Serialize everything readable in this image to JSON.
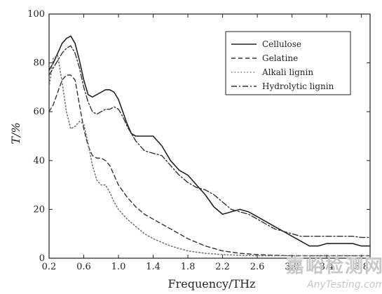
{
  "chart_data": {
    "type": "line",
    "xlabel": "Frequency/THz",
    "ylabel": "T/%",
    "xlim": [
      0.2,
      3.9
    ],
    "ylim": [
      0,
      100
    ],
    "xticks": [
      0.2,
      0.6,
      1.0,
      1.4,
      1.8,
      2.2,
      2.6,
      3.0,
      3.4,
      3.8
    ],
    "yticks": [
      0,
      20,
      40,
      60,
      80,
      100
    ],
    "xtick_labels": [
      "0.2",
      "0.6",
      "1.0",
      "1.4",
      "1.8",
      "2.2",
      "2.6",
      "3.0",
      "3.4",
      "3.8"
    ],
    "ytick_labels": [
      "0",
      "20",
      "40",
      "60",
      "80",
      "100"
    ],
    "grid": false,
    "legend_position": "top-right",
    "series": [
      {
        "name": "Cellulose",
        "style": "solid",
        "x": [
          0.2,
          0.25,
          0.3,
          0.35,
          0.4,
          0.45,
          0.5,
          0.55,
          0.6,
          0.65,
          0.7,
          0.75,
          0.8,
          0.85,
          0.9,
          0.95,
          1.0,
          1.05,
          1.1,
          1.15,
          1.2,
          1.3,
          1.4,
          1.5,
          1.6,
          1.7,
          1.8,
          1.9,
          2.0,
          2.1,
          2.2,
          2.3,
          2.4,
          2.5,
          2.6,
          2.7,
          2.8,
          2.9,
          3.0,
          3.1,
          3.2,
          3.3,
          3.4,
          3.5,
          3.6,
          3.7,
          3.8,
          3.9
        ],
        "y": [
          77,
          80,
          84,
          88,
          90,
          91,
          88,
          81,
          73,
          67,
          66,
          67,
          68,
          69,
          69,
          68,
          65,
          60,
          55,
          51,
          50,
          50,
          50,
          46,
          40,
          36,
          34,
          30,
          26,
          21,
          18,
          19,
          20,
          19,
          17,
          15,
          13,
          11,
          9,
          7,
          5,
          5,
          6,
          6,
          6,
          6,
          5,
          5
        ]
      },
      {
        "name": "Gelatine",
        "style": "dashed",
        "x": [
          0.2,
          0.25,
          0.3,
          0.35,
          0.4,
          0.45,
          0.5,
          0.55,
          0.6,
          0.65,
          0.7,
          0.75,
          0.8,
          0.85,
          0.9,
          0.95,
          1.0,
          1.1,
          1.2,
          1.3,
          1.4,
          1.5,
          1.6,
          1.8,
          2.0,
          2.2,
          2.4,
          2.6,
          2.8,
          3.0,
          3.2,
          3.4,
          3.6,
          3.8,
          3.9
        ],
        "y": [
          60,
          63,
          68,
          73,
          75,
          75,
          73,
          63,
          53,
          46,
          42,
          41,
          41,
          40,
          38,
          34,
          30,
          25,
          21,
          18,
          16,
          14,
          12,
          8,
          5,
          3,
          2,
          1.5,
          1.2,
          1,
          1,
          1,
          1,
          1,
          1
        ]
      },
      {
        "name": "Alkali lignin",
        "style": "dotted",
        "x": [
          0.2,
          0.25,
          0.3,
          0.35,
          0.4,
          0.45,
          0.5,
          0.55,
          0.6,
          0.65,
          0.7,
          0.75,
          0.8,
          0.85,
          0.9,
          0.95,
          1.0,
          1.1,
          1.2,
          1.3,
          1.4,
          1.6,
          1.8,
          2.0,
          2.2,
          2.4,
          2.6,
          2.8,
          3.0,
          3.2,
          3.4,
          3.6,
          3.8,
          3.9
        ],
        "y": [
          70,
          82,
          83,
          72,
          60,
          53,
          54,
          56,
          55,
          47,
          38,
          32,
          30,
          30,
          27,
          23,
          20,
          16,
          13,
          10,
          8,
          5,
          3,
          2,
          1.5,
          1.2,
          1,
          1,
          1,
          1,
          1,
          1,
          1,
          1
        ]
      },
      {
        "name": "Hydrolytic lignin",
        "style": "dashdot",
        "x": [
          0.2,
          0.25,
          0.3,
          0.35,
          0.4,
          0.45,
          0.5,
          0.55,
          0.6,
          0.65,
          0.7,
          0.75,
          0.8,
          0.85,
          0.9,
          0.95,
          1.0,
          1.05,
          1.1,
          1.2,
          1.3,
          1.4,
          1.5,
          1.6,
          1.7,
          1.8,
          1.9,
          2.0,
          2.1,
          2.2,
          2.3,
          2.4,
          2.5,
          2.6,
          2.7,
          2.8,
          2.9,
          3.0,
          3.1,
          3.2,
          3.3,
          3.4,
          3.5,
          3.6,
          3.7,
          3.8,
          3.9
        ],
        "y": [
          75,
          78,
          81,
          84,
          86,
          87,
          84,
          78,
          70,
          64,
          60,
          59,
          60,
          61,
          61,
          62,
          61,
          58,
          54,
          48,
          44,
          43,
          42,
          38,
          34,
          31,
          29,
          28,
          26,
          23,
          20,
          19,
          18,
          16,
          14,
          12,
          11,
          10,
          9,
          9,
          9,
          9,
          9,
          9,
          9,
          8.5,
          8.5
        ]
      }
    ]
  },
  "watermark": {
    "chinese": "嘉峪检测网",
    "english": "AnyTesting.com"
  }
}
